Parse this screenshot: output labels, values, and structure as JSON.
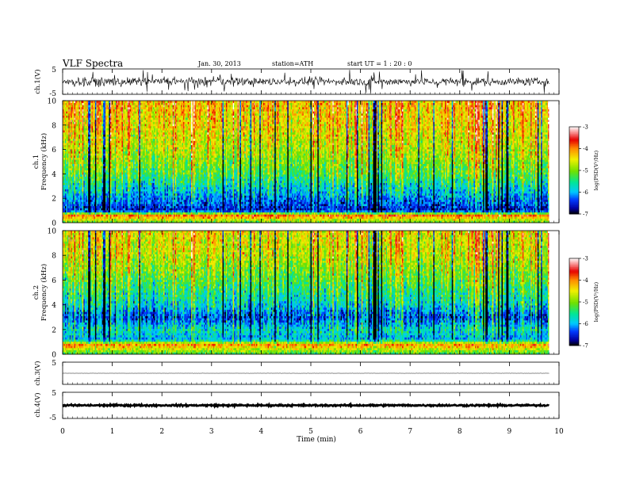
{
  "header": {
    "title": "VLF  Spectra",
    "date": "Jan. 30, 2013",
    "station": "station=ATH",
    "start": "start  UT  =   1  : 20 : 0"
  },
  "chart_data": [
    {
      "type": "line",
      "name": "ch1-waveform",
      "ylabel": "ch.1(V)",
      "ylim": [
        -5,
        5
      ],
      "yticks": [
        "5",
        "-5"
      ],
      "x_range_min": [
        0,
        9.8
      ],
      "approx_amplitude_V": 1.5
    },
    {
      "type": "heatmap",
      "name": "ch1-spectrogram",
      "ylabel_line1": "ch.1",
      "ylabel_line2": "Frequency  (kHz)",
      "xlim": [
        0,
        10
      ],
      "ylim": [
        0,
        10
      ],
      "yticks": [
        "0",
        "2",
        "4",
        "6",
        "8",
        "10"
      ],
      "colorbar": {
        "label": "log(PSD(V²/Hz)",
        "range": [
          -7,
          -3
        ],
        "ticks": [
          "-3",
          "-4",
          "-5",
          "-6",
          "-7"
        ]
      },
      "background_level_by_freq_kHz": [
        [
          0,
          -5.2
        ],
        [
          0.6,
          -3.9
        ],
        [
          1,
          -6.6
        ],
        [
          2,
          -6.2
        ],
        [
          3,
          -5.8
        ],
        [
          4,
          -5.3
        ],
        [
          6,
          -4.8
        ],
        [
          8,
          -4.5
        ],
        [
          10,
          -4.3
        ]
      ]
    },
    {
      "type": "heatmap",
      "name": "ch2-spectrogram",
      "ylabel_line1": "ch.2",
      "ylabel_line2": "Frequency  (kHz)",
      "xlim": [
        0,
        10
      ],
      "ylim": [
        0,
        10
      ],
      "yticks": [
        "0",
        "2",
        "4",
        "6",
        "8",
        "10"
      ],
      "colorbar": {
        "label": "log(PSD(V²/Hz)",
        "range": [
          -7,
          -3
        ],
        "ticks": [
          "-3",
          "-4",
          "-5",
          "-6",
          "-7"
        ]
      },
      "background_level_by_freq_kHz": [
        [
          0,
          -5.2
        ],
        [
          0.8,
          -3.9
        ],
        [
          1.2,
          -5.9
        ],
        [
          2,
          -5.6
        ],
        [
          3,
          -6.3
        ],
        [
          4,
          -5.7
        ],
        [
          6,
          -5.1
        ],
        [
          8,
          -4.6
        ],
        [
          10,
          -4.4
        ]
      ]
    },
    {
      "type": "line",
      "name": "ch3-waveform",
      "ylabel": "ch.3(V)",
      "ylim": [
        -5,
        5
      ],
      "yticks": [
        "5"
      ],
      "approx_amplitude_V": 0.05
    },
    {
      "type": "line",
      "name": "ch4-waveform",
      "ylabel": "ch.4(V)",
      "ylim": [
        -5,
        5
      ],
      "yticks": [
        "5",
        "-5"
      ],
      "approx_amplitude_V": 0.3
    }
  ],
  "x_axis": {
    "label": "Time  (min)",
    "ticks": [
      "0",
      "1",
      "2",
      "3",
      "4",
      "5",
      "6",
      "7",
      "8",
      "9",
      "10"
    ],
    "xlim": [
      0,
      10
    ],
    "data_end_min": 9.8
  }
}
